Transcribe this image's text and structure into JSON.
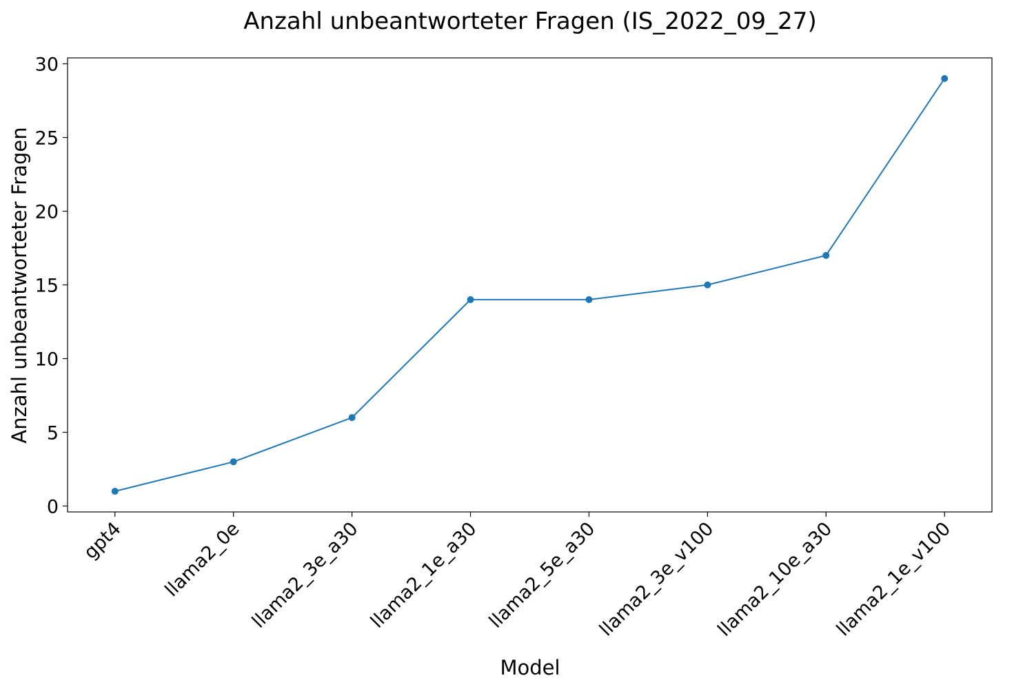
{
  "chart_data": {
    "type": "line",
    "title": "Anzahl unbeantworteter Fragen (IS_2022_09_27)",
    "xlabel": "Model",
    "ylabel": "Anzahl unbeantworteter Fragen",
    "categories": [
      "gpt4",
      "llama2_0e",
      "llama2_3e_a30",
      "llama2_1e_a30",
      "llama2_5e_a30",
      "llama2_3e_v100",
      "llama2_10e_a30",
      "llama2_1e_v100"
    ],
    "series": [
      {
        "values": [
          1,
          3,
          6,
          14,
          14,
          15,
          17,
          29
        ],
        "color": "#1f77b4"
      }
    ],
    "ylim": [
      -0.4,
      30.4
    ],
    "yticks": [
      0,
      5,
      10,
      15,
      20,
      25,
      30
    ],
    "grid": false,
    "legend": "none",
    "x_tick_rotation": "45 degrees"
  }
}
